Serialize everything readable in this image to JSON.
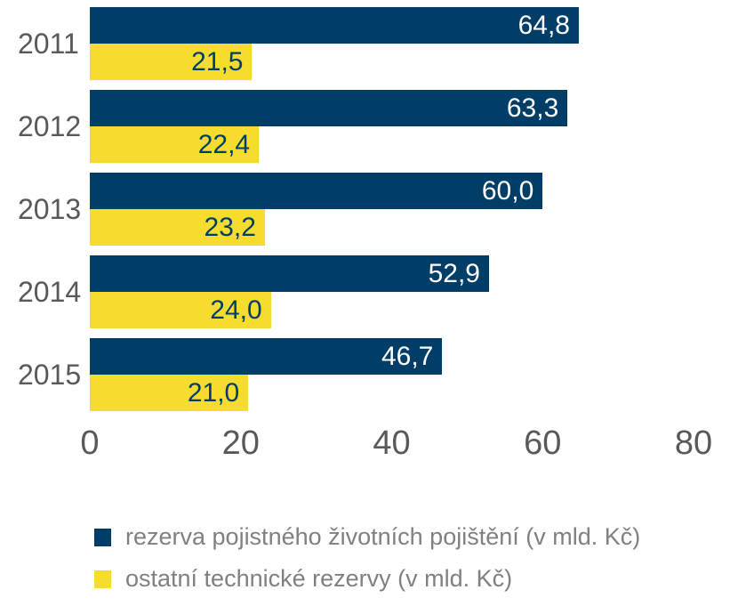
{
  "chart_data": {
    "type": "bar",
    "orientation": "horizontal",
    "title": "",
    "categories": [
      "2011",
      "2012",
      "2013",
      "2014",
      "2015"
    ],
    "series": [
      {
        "name": "rezerva pojistného životních pojištění (v mld. Kč)",
        "color": "#003e68",
        "label_color": "#ffffff",
        "values": [
          64.8,
          63.3,
          60.0,
          52.9,
          46.7
        ],
        "labels": [
          "64,8",
          "63,3",
          "60,0",
          "52,9",
          "46,7"
        ]
      },
      {
        "name": "ostatní technické rezervy (v mld. Kč)",
        "color": "#f7dc30",
        "label_color": "#003e68",
        "values": [
          21.5,
          22.4,
          23.2,
          24.0,
          21.0
        ],
        "labels": [
          "21,5",
          "22,4",
          "23,2",
          "24,0",
          "21,0"
        ]
      }
    ],
    "xlim": [
      0,
      80
    ],
    "x_ticks": [
      "0",
      "20",
      "40",
      "60",
      "80"
    ],
    "grid": false,
    "legend_position": "bottom"
  },
  "colors": {
    "bar_primary": "#003e68",
    "bar_secondary": "#f7dc30",
    "axis_text": "#595959",
    "legend_text": "#808080",
    "background": "#ffffff"
  }
}
